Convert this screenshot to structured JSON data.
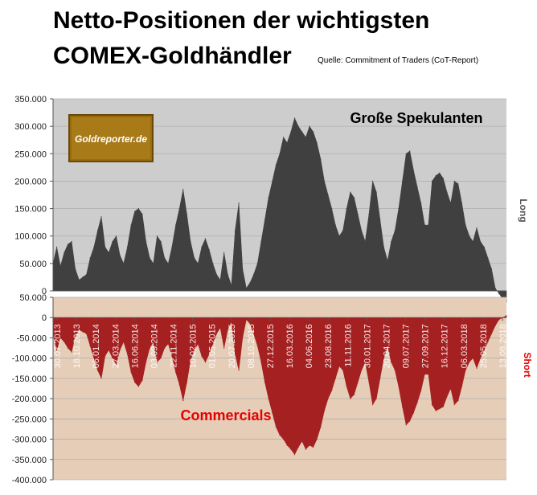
{
  "header": {
    "title_line1": "Netto-Positionen der wichtigsten",
    "title_line2": "COMEX-Goldhändler",
    "source": "Quelle: Commitment of Traders (CoT-Report)"
  },
  "logo_text": "Goldreporter.de",
  "chart_data": [
    {
      "type": "area",
      "title": "",
      "series": [
        {
          "name": "Große Spekulanten",
          "color": "#404040",
          "values": [
            50000,
            80000,
            45000,
            70000,
            85000,
            90000,
            40000,
            20000,
            25000,
            30000,
            60000,
            80000,
            110000,
            135000,
            80000,
            70000,
            90000,
            100000,
            65000,
            50000,
            80000,
            120000,
            145000,
            150000,
            140000,
            90000,
            60000,
            50000,
            100000,
            90000,
            60000,
            50000,
            80000,
            120000,
            150000,
            185000,
            140000,
            90000,
            60000,
            50000,
            80000,
            95000,
            75000,
            50000,
            30000,
            20000,
            70000,
            30000,
            10000,
            110000,
            160000,
            40000,
            5000,
            15000,
            30000,
            50000,
            90000,
            130000,
            170000,
            200000,
            230000,
            250000,
            280000,
            270000,
            290000,
            315000,
            300000,
            290000,
            280000,
            300000,
            290000,
            270000,
            240000,
            200000,
            175000,
            150000,
            120000,
            100000,
            110000,
            150000,
            180000,
            170000,
            140000,
            110000,
            90000,
            140000,
            200000,
            180000,
            130000,
            80000,
            55000,
            90000,
            110000,
            150000,
            200000,
            250000,
            255000,
            220000,
            190000,
            160000,
            120000,
            120000,
            200000,
            210000,
            215000,
            205000,
            180000,
            160000,
            200000,
            195000,
            160000,
            120000,
            100000,
            90000,
            115000,
            90000,
            80000,
            60000,
            40000,
            5000,
            -5000,
            -15000,
            -20000
          ]
        },
        {
          "name": "Commercials",
          "color": "#a52020",
          "values": [
            -40000,
            -80000,
            -50000,
            -60000,
            -75000,
            -85000,
            -45000,
            -30000,
            -35000,
            -40000,
            -70000,
            -100000,
            -130000,
            -150000,
            -95000,
            -80000,
            -100000,
            -115000,
            -80000,
            -60000,
            -90000,
            -135000,
            -160000,
            -170000,
            -155000,
            -110000,
            -75000,
            -60000,
            -110000,
            -100000,
            -75000,
            -65000,
            -95000,
            -135000,
            -165000,
            -205000,
            -160000,
            -105000,
            -80000,
            -65000,
            -95000,
            -110000,
            -90000,
            -65000,
            -40000,
            -25000,
            -75000,
            -30000,
            -10000,
            -90000,
            -130000,
            -50000,
            -5000,
            -15000,
            -40000,
            -70000,
            -110000,
            -160000,
            -200000,
            -235000,
            -270000,
            -290000,
            -300000,
            -315000,
            -325000,
            -338000,
            -320000,
            -305000,
            -325000,
            -315000,
            -320000,
            -300000,
            -270000,
            -230000,
            -200000,
            -180000,
            -150000,
            -120000,
            -130000,
            -170000,
            -200000,
            -190000,
            -160000,
            -130000,
            -110000,
            -160000,
            -215000,
            -200000,
            -150000,
            -100000,
            -70000,
            -110000,
            -130000,
            -170000,
            -220000,
            -265000,
            -255000,
            -235000,
            -210000,
            -180000,
            -140000,
            -140000,
            -215000,
            -230000,
            -225000,
            -220000,
            -195000,
            -175000,
            -215000,
            -205000,
            -170000,
            -130000,
            -110000,
            -100000,
            -125000,
            -100000,
            -80000,
            -60000,
            -40000,
            -20000,
            -5000,
            0,
            5000
          ]
        }
      ],
      "x_tick_labels": [
        "30.07.2013",
        "18.10.2013",
        "06.01.2014",
        "27.03.2014",
        "16.06.2014",
        "03.09.2014",
        "22.11.2014",
        "10.02.2015",
        "01.05.2015",
        "20.07.2015",
        "08.10.2015",
        "27.12.2015",
        "16.03.2016",
        "04.06.2016",
        "23.08.2016",
        "11.11.2016",
        "30.01.2017",
        "20.04.2017",
        "09.07.2017",
        "27.09.2017",
        "16.12.2017",
        "06.03.2018",
        "25.05.2018",
        "13.08.2018"
      ],
      "top_panel": {
        "ylim": [
          0,
          350000
        ],
        "y_ticks": [
          "350.000",
          "300.000",
          "250.000",
          "200.000",
          "150.000",
          "100.000",
          "50.000",
          "0"
        ],
        "background": "#cdcdcd",
        "label": "Große Spekulanten",
        "side_label": "Long"
      },
      "bottom_panel": {
        "ylim": [
          -400000,
          50000
        ],
        "y_ticks": [
          "50.000",
          "0",
          "-50.000",
          "-100.000",
          "-150.000",
          "-200.000",
          "-250.000",
          "-300.000",
          "-350.000",
          "-400.000"
        ],
        "background": "#e6cdb8",
        "label": "Commercials",
        "side_label": "Short",
        "label_color": "#e60000"
      },
      "grid": true
    }
  ]
}
